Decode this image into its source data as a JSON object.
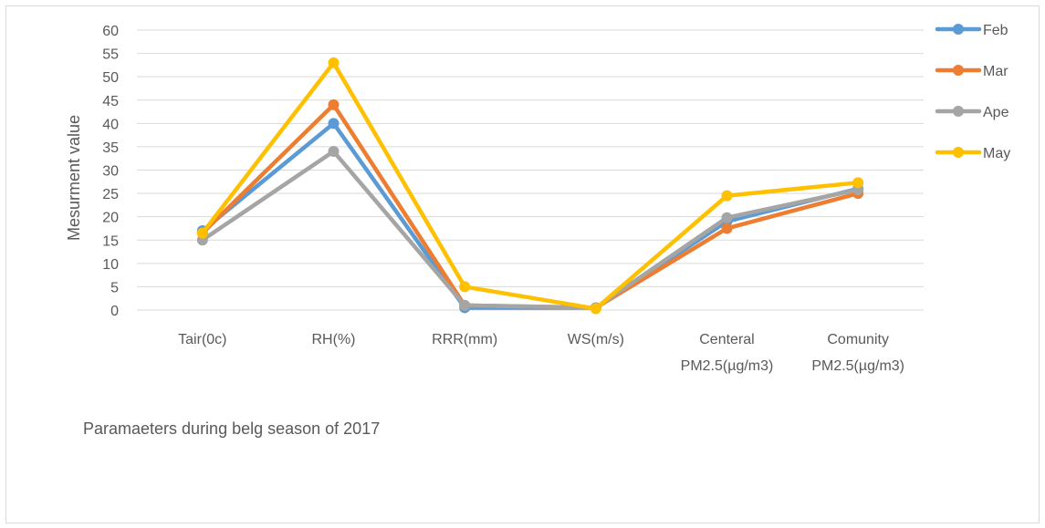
{
  "chart_data": {
    "type": "line",
    "title": "",
    "xlabel": "Paramaeters during belg season of 2017",
    "ylabel": "Mesurment value",
    "ylim": [
      0,
      60
    ],
    "yticks": [
      "0",
      "5",
      "10",
      "15",
      "20",
      "25",
      "30",
      "35",
      "40",
      "45",
      "50",
      "55",
      "60"
    ],
    "categories": [
      [
        "Tair(0c)"
      ],
      [
        "RH(%)"
      ],
      [
        "RRR(mm)"
      ],
      [
        "WS(m/s)"
      ],
      [
        "Centeral",
        "PM2.5(µg/m3)"
      ],
      [
        "Comunity",
        "PM2.5(µg/m3)"
      ]
    ],
    "grid": true,
    "legend_position": "right",
    "series": [
      {
        "name": "Feb",
        "color": "#5b9bd5",
        "values": [
          17.0,
          40.0,
          0.5,
          0.5,
          19.0,
          26.0
        ]
      },
      {
        "name": "Mar",
        "color": "#ed7d31",
        "values": [
          16.5,
          44.0,
          1.0,
          0.5,
          17.5,
          25.0
        ]
      },
      {
        "name": "Ape",
        "color": "#a5a5a5",
        "values": [
          15.0,
          34.0,
          1.0,
          0.5,
          19.8,
          25.8
        ]
      },
      {
        "name": "May",
        "color": "#ffc000",
        "values": [
          16.5,
          53.0,
          5.0,
          0.3,
          24.5,
          27.3
        ]
      }
    ]
  }
}
